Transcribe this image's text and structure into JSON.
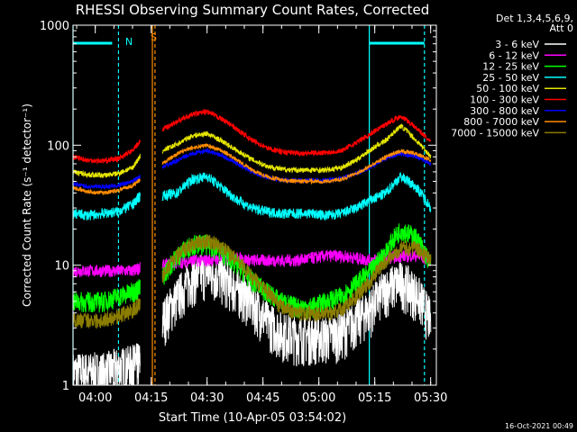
{
  "chart_data": {
    "type": "line",
    "title": "RHESSI Observing Summary Count Rates, Corrected",
    "xlabel": "Start Time (10-Apr-05 03:54:02)",
    "ylabel": "Corrected Count Rate (s⁻¹ detector⁻¹)",
    "yscale": "log",
    "ylim": [
      1,
      1000
    ],
    "xlim_minutes_from_start": [
      0,
      97.5
    ],
    "x_tick_labels": [
      "04:00",
      "04:15",
      "04:30",
      "04:45",
      "05:00",
      "05:15",
      "05:30"
    ],
    "x_tick_minutes": [
      5.97,
      20.97,
      35.97,
      50.97,
      65.97,
      80.97,
      95.97
    ],
    "y_tick_labels": [
      "1",
      "10",
      "100",
      "1000"
    ],
    "y_tick_values": [
      1,
      10,
      100,
      1000
    ],
    "legend_header": [
      "Det 1,3,4,5,6,9,",
      "Att 0"
    ],
    "legend_position": "right",
    "footer_date": "16-Oct-2021 00:49",
    "annotations": [
      {
        "text": "N",
        "color": "#00ffff"
      },
      {
        "text": "S",
        "color": "#ff8c00"
      }
    ],
    "x": [
      0,
      4,
      8,
      12,
      16,
      18,
      20,
      24,
      28,
      32,
      36,
      40,
      44,
      48,
      52,
      56,
      60,
      64,
      68,
      72,
      76,
      80,
      84,
      88,
      92,
      96
    ],
    "series": [
      {
        "name": "3 - 6 keV",
        "color": "#ffffff",
        "noise": 0.45,
        "values": [
          1.3,
          1.3,
          1.3,
          1.4,
          1.5,
          1.6,
          null,
          3.5,
          5.5,
          8,
          9,
          8,
          6.5,
          5,
          3.5,
          2.8,
          2.6,
          2.6,
          2.6,
          2.8,
          3.5,
          4.5,
          6.5,
          7.5,
          6,
          3.5
        ]
      },
      {
        "name": "6 - 12 keV",
        "color": "#ff00ff",
        "noise": 0.12,
        "values": [
          9,
          9,
          9,
          9,
          9,
          9.5,
          null,
          10,
          10.5,
          11,
          11,
          11.5,
          11.5,
          11,
          11,
          11,
          11,
          11.5,
          12,
          12,
          11.5,
          11,
          11.5,
          12,
          12,
          11
        ]
      },
      {
        "name": "12 - 25 keV",
        "color": "#00ff00",
        "noise": 0.2,
        "values": [
          5,
          5,
          5,
          5.5,
          6,
          6.5,
          null,
          8,
          12,
          15,
          15,
          13,
          10,
          7.5,
          6,
          5,
          4.5,
          4.5,
          5,
          5.5,
          7,
          9,
          13,
          20,
          17,
          10
        ]
      },
      {
        "name": "25 - 50 keV",
        "color": "#00ffff",
        "noise": 0.1,
        "values": [
          27,
          26,
          27,
          28,
          32,
          38,
          null,
          38,
          40,
          52,
          55,
          44,
          35,
          30,
          28,
          27,
          27,
          27,
          26,
          27,
          30,
          35,
          40,
          55,
          45,
          30
        ]
      },
      {
        "name": "50 - 100 keV",
        "color": "#e6e600",
        "noise": 0.05,
        "values": [
          60,
          57,
          56,
          58,
          65,
          80,
          null,
          90,
          102,
          120,
          125,
          108,
          90,
          76,
          67,
          63,
          62,
          62,
          62,
          65,
          75,
          92,
          110,
          145,
          110,
          80
        ]
      },
      {
        "name": "100 - 300 keV",
        "color": "#ff0000",
        "noise": 0.05,
        "values": [
          80,
          75,
          74,
          77,
          90,
          108,
          null,
          135,
          158,
          180,
          190,
          165,
          135,
          110,
          95,
          88,
          86,
          86,
          87,
          90,
          105,
          125,
          150,
          175,
          140,
          105
        ]
      },
      {
        "name": "300 - 800 keV",
        "color": "#0000ff",
        "noise": 0.04,
        "values": [
          48,
          45,
          45,
          46,
          50,
          55,
          null,
          65,
          75,
          85,
          90,
          82,
          70,
          60,
          54,
          51,
          51,
          51,
          51,
          53,
          58,
          66,
          78,
          85,
          80,
          70
        ]
      },
      {
        "name": "800 - 7000 keV",
        "color": "#ff8c00",
        "noise": 0.04,
        "values": [
          44,
          41,
          40,
          42,
          46,
          52,
          null,
          70,
          85,
          95,
          100,
          90,
          75,
          62,
          55,
          51,
          50,
          50,
          50,
          52,
          58,
          68,
          80,
          90,
          85,
          75
        ]
      },
      {
        "name": "7000 - 15000 keV",
        "color": "#8b7d00",
        "noise": 0.15,
        "values": [
          3.5,
          3.5,
          3.5,
          3.8,
          4.2,
          4.8,
          null,
          8,
          12,
          15,
          16,
          14,
          11,
          8,
          6,
          4.5,
          4,
          4,
          4,
          4.3,
          5.5,
          7.5,
          11,
          14,
          14,
          11
        ]
      }
    ]
  }
}
